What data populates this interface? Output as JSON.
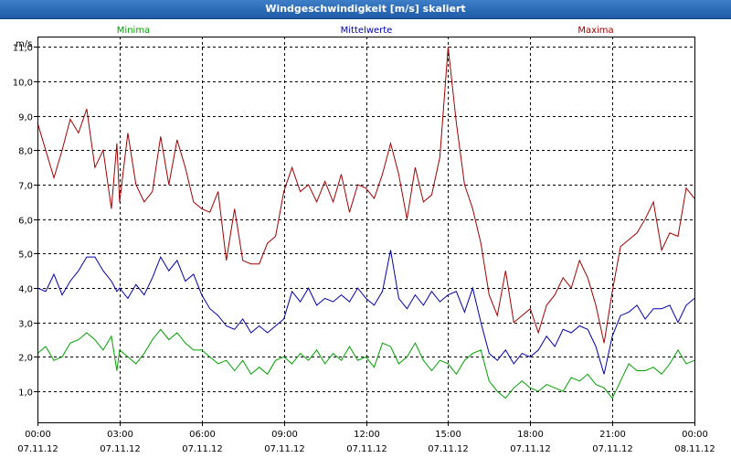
{
  "window": {
    "title": "Windgeschwindigkeit [m/s] skaliert"
  },
  "colors": {
    "minima": "#00A000",
    "mittelwerte": "#0000A8",
    "maxima": "#A00000",
    "grid": "#000000"
  },
  "chart_data": {
    "type": "line",
    "title": "Windgeschwindigkeit [m/s] skaliert",
    "ylabel": "m/s",
    "ylim": [
      0.1,
      11.3
    ],
    "xlim": [
      0,
      24
    ],
    "yticks": [
      1,
      2,
      3,
      4,
      5,
      6,
      7,
      8,
      9,
      10,
      11
    ],
    "ytick_labels": [
      "1,0",
      "2,0",
      "3,0",
      "4,0",
      "5,0",
      "6,0",
      "7,0",
      "8,0",
      "9,0",
      "10,0",
      "11,0"
    ],
    "xticks": [
      0,
      3,
      6,
      9,
      12,
      15,
      18,
      21,
      24
    ],
    "xtick_labels": [
      {
        "time": "00:00",
        "date": "07.11.12"
      },
      {
        "time": "03:00",
        "date": "07.11.12"
      },
      {
        "time": "06:00",
        "date": "07.11.12"
      },
      {
        "time": "09:00",
        "date": "07.11.12"
      },
      {
        "time": "12:00",
        "date": "07.11.12"
      },
      {
        "time": "15:00",
        "date": "07.11.12"
      },
      {
        "time": "18:00",
        "date": "07.11.12"
      },
      {
        "time": "21:00",
        "date": "07.11.12"
      },
      {
        "time": "00:00",
        "date": "08.11.12"
      }
    ],
    "series": [
      {
        "name": "Minima",
        "color": "#00A000",
        "x": [
          0,
          0.3,
          0.6,
          0.9,
          1.2,
          1.5,
          1.8,
          2.1,
          2.4,
          2.7,
          2.9,
          3.0,
          3.3,
          3.6,
          3.9,
          4.2,
          4.5,
          4.8,
          5.1,
          5.4,
          5.7,
          6.0,
          6.3,
          6.6,
          6.9,
          7.2,
          7.5,
          7.8,
          8.1,
          8.4,
          8.7,
          9.0,
          9.3,
          9.6,
          9.9,
          10.2,
          10.5,
          10.8,
          11.1,
          11.4,
          11.7,
          12.0,
          12.3,
          12.6,
          12.9,
          13.2,
          13.5,
          13.8,
          14.1,
          14.4,
          14.7,
          15.0,
          15.3,
          15.6,
          15.9,
          16.2,
          16.5,
          16.8,
          17.1,
          17.4,
          17.7,
          18.0,
          18.3,
          18.6,
          18.9,
          19.2,
          19.5,
          19.8,
          20.1,
          20.4,
          20.7,
          21.0,
          21.3,
          21.6,
          21.9,
          22.2,
          22.5,
          22.8,
          23.1,
          23.4,
          23.7,
          24.0
        ],
        "values": [
          2.1,
          2.3,
          1.9,
          2.0,
          2.4,
          2.5,
          2.7,
          2.5,
          2.2,
          2.6,
          1.6,
          2.2,
          2.0,
          1.8,
          2.1,
          2.5,
          2.8,
          2.5,
          2.7,
          2.4,
          2.2,
          2.2,
          2.0,
          1.8,
          1.9,
          1.6,
          1.9,
          1.5,
          1.7,
          1.5,
          1.9,
          2.0,
          1.8,
          2.1,
          1.9,
          2.2,
          1.8,
          2.1,
          1.9,
          2.3,
          1.9,
          2.0,
          1.7,
          2.4,
          2.3,
          1.8,
          2.0,
          2.4,
          1.9,
          1.6,
          1.9,
          1.8,
          1.5,
          1.9,
          2.1,
          2.2,
          1.3,
          1.0,
          0.8,
          1.1,
          1.3,
          1.1,
          1.0,
          1.2,
          1.1,
          1.0,
          1.4,
          1.3,
          1.5,
          1.2,
          1.1,
          0.8,
          1.3,
          1.8,
          1.6,
          1.6,
          1.7,
          1.5,
          1.8,
          2.2,
          1.8,
          1.9
        ]
      },
      {
        "name": "Mittelwerte",
        "color": "#0000A8",
        "x": [
          0,
          0.3,
          0.6,
          0.9,
          1.2,
          1.5,
          1.8,
          2.1,
          2.4,
          2.7,
          2.9,
          3.0,
          3.3,
          3.6,
          3.9,
          4.2,
          4.5,
          4.8,
          5.1,
          5.4,
          5.7,
          6.0,
          6.3,
          6.6,
          6.9,
          7.2,
          7.5,
          7.8,
          8.1,
          8.4,
          8.7,
          9.0,
          9.3,
          9.6,
          9.9,
          10.2,
          10.5,
          10.8,
          11.1,
          11.4,
          11.7,
          12.0,
          12.3,
          12.6,
          12.9,
          13.2,
          13.5,
          13.8,
          14.1,
          14.4,
          14.7,
          15.0,
          15.3,
          15.6,
          15.9,
          16.2,
          16.5,
          16.8,
          17.1,
          17.4,
          17.7,
          18.0,
          18.3,
          18.6,
          18.9,
          19.2,
          19.5,
          19.8,
          20.1,
          20.4,
          20.7,
          21.0,
          21.3,
          21.6,
          21.9,
          22.2,
          22.5,
          22.8,
          23.1,
          23.4,
          23.7,
          24.0
        ],
        "values": [
          4.0,
          3.9,
          4.4,
          3.8,
          4.2,
          4.5,
          4.9,
          4.9,
          4.5,
          4.2,
          3.9,
          4.0,
          3.7,
          4.1,
          3.8,
          4.3,
          4.9,
          4.5,
          4.8,
          4.2,
          4.4,
          3.8,
          3.4,
          3.2,
          2.9,
          2.8,
          3.1,
          2.7,
          2.9,
          2.7,
          2.9,
          3.1,
          3.9,
          3.6,
          4.0,
          3.5,
          3.7,
          3.6,
          3.8,
          3.6,
          4.0,
          3.7,
          3.5,
          3.9,
          5.1,
          3.7,
          3.4,
          3.8,
          3.5,
          3.9,
          3.6,
          3.8,
          3.9,
          3.3,
          4.0,
          3.0,
          2.1,
          1.9,
          2.2,
          1.8,
          2.1,
          2.0,
          2.2,
          2.6,
          2.3,
          2.8,
          2.7,
          2.9,
          2.8,
          2.3,
          1.5,
          2.6,
          3.2,
          3.3,
          3.5,
          3.1,
          3.4,
          3.4,
          3.5,
          3.0,
          3.5,
          3.7
        ]
      },
      {
        "name": "Maxima",
        "color": "#A00000",
        "x": [
          0,
          0.3,
          0.6,
          0.9,
          1.2,
          1.5,
          1.8,
          2.1,
          2.4,
          2.7,
          2.9,
          3.0,
          3.3,
          3.6,
          3.9,
          4.2,
          4.5,
          4.8,
          5.1,
          5.4,
          5.7,
          6.0,
          6.3,
          6.6,
          6.9,
          7.2,
          7.5,
          7.8,
          8.1,
          8.4,
          8.7,
          9.0,
          9.3,
          9.6,
          9.9,
          10.2,
          10.5,
          10.8,
          11.1,
          11.4,
          11.7,
          12.0,
          12.3,
          12.6,
          12.9,
          13.2,
          13.5,
          13.8,
          14.1,
          14.4,
          14.7,
          15.0,
          15.3,
          15.6,
          15.9,
          16.2,
          16.5,
          16.8,
          17.1,
          17.4,
          17.7,
          18.0,
          18.3,
          18.6,
          18.9,
          19.2,
          19.5,
          19.8,
          20.1,
          20.4,
          20.7,
          21.0,
          21.3,
          21.6,
          21.9,
          22.2,
          22.5,
          22.8,
          23.1,
          23.4,
          23.7,
          24.0
        ],
        "values": [
          8.8,
          8.0,
          7.2,
          8.0,
          8.9,
          8.5,
          9.2,
          7.5,
          8.0,
          6.3,
          8.2,
          6.5,
          8.5,
          7.0,
          6.5,
          6.8,
          8.4,
          7.0,
          8.3,
          7.5,
          6.5,
          6.3,
          6.2,
          6.8,
          4.8,
          6.3,
          4.8,
          4.7,
          4.7,
          5.3,
          5.5,
          6.8,
          7.5,
          6.8,
          7.0,
          6.5,
          7.1,
          6.5,
          7.3,
          6.2,
          7.0,
          6.9,
          6.6,
          7.3,
          8.2,
          7.3,
          6.0,
          7.5,
          6.5,
          6.7,
          7.8,
          11.0,
          8.8,
          7.0,
          6.3,
          5.3,
          3.8,
          3.2,
          4.5,
          3.0,
          3.2,
          3.4,
          2.7,
          3.5,
          3.8,
          4.3,
          4.0,
          4.8,
          4.3,
          3.5,
          2.4,
          3.9,
          5.2,
          5.4,
          5.6,
          6.0,
          6.5,
          5.1,
          5.6,
          5.5,
          6.9,
          6.6
        ]
      }
    ]
  }
}
